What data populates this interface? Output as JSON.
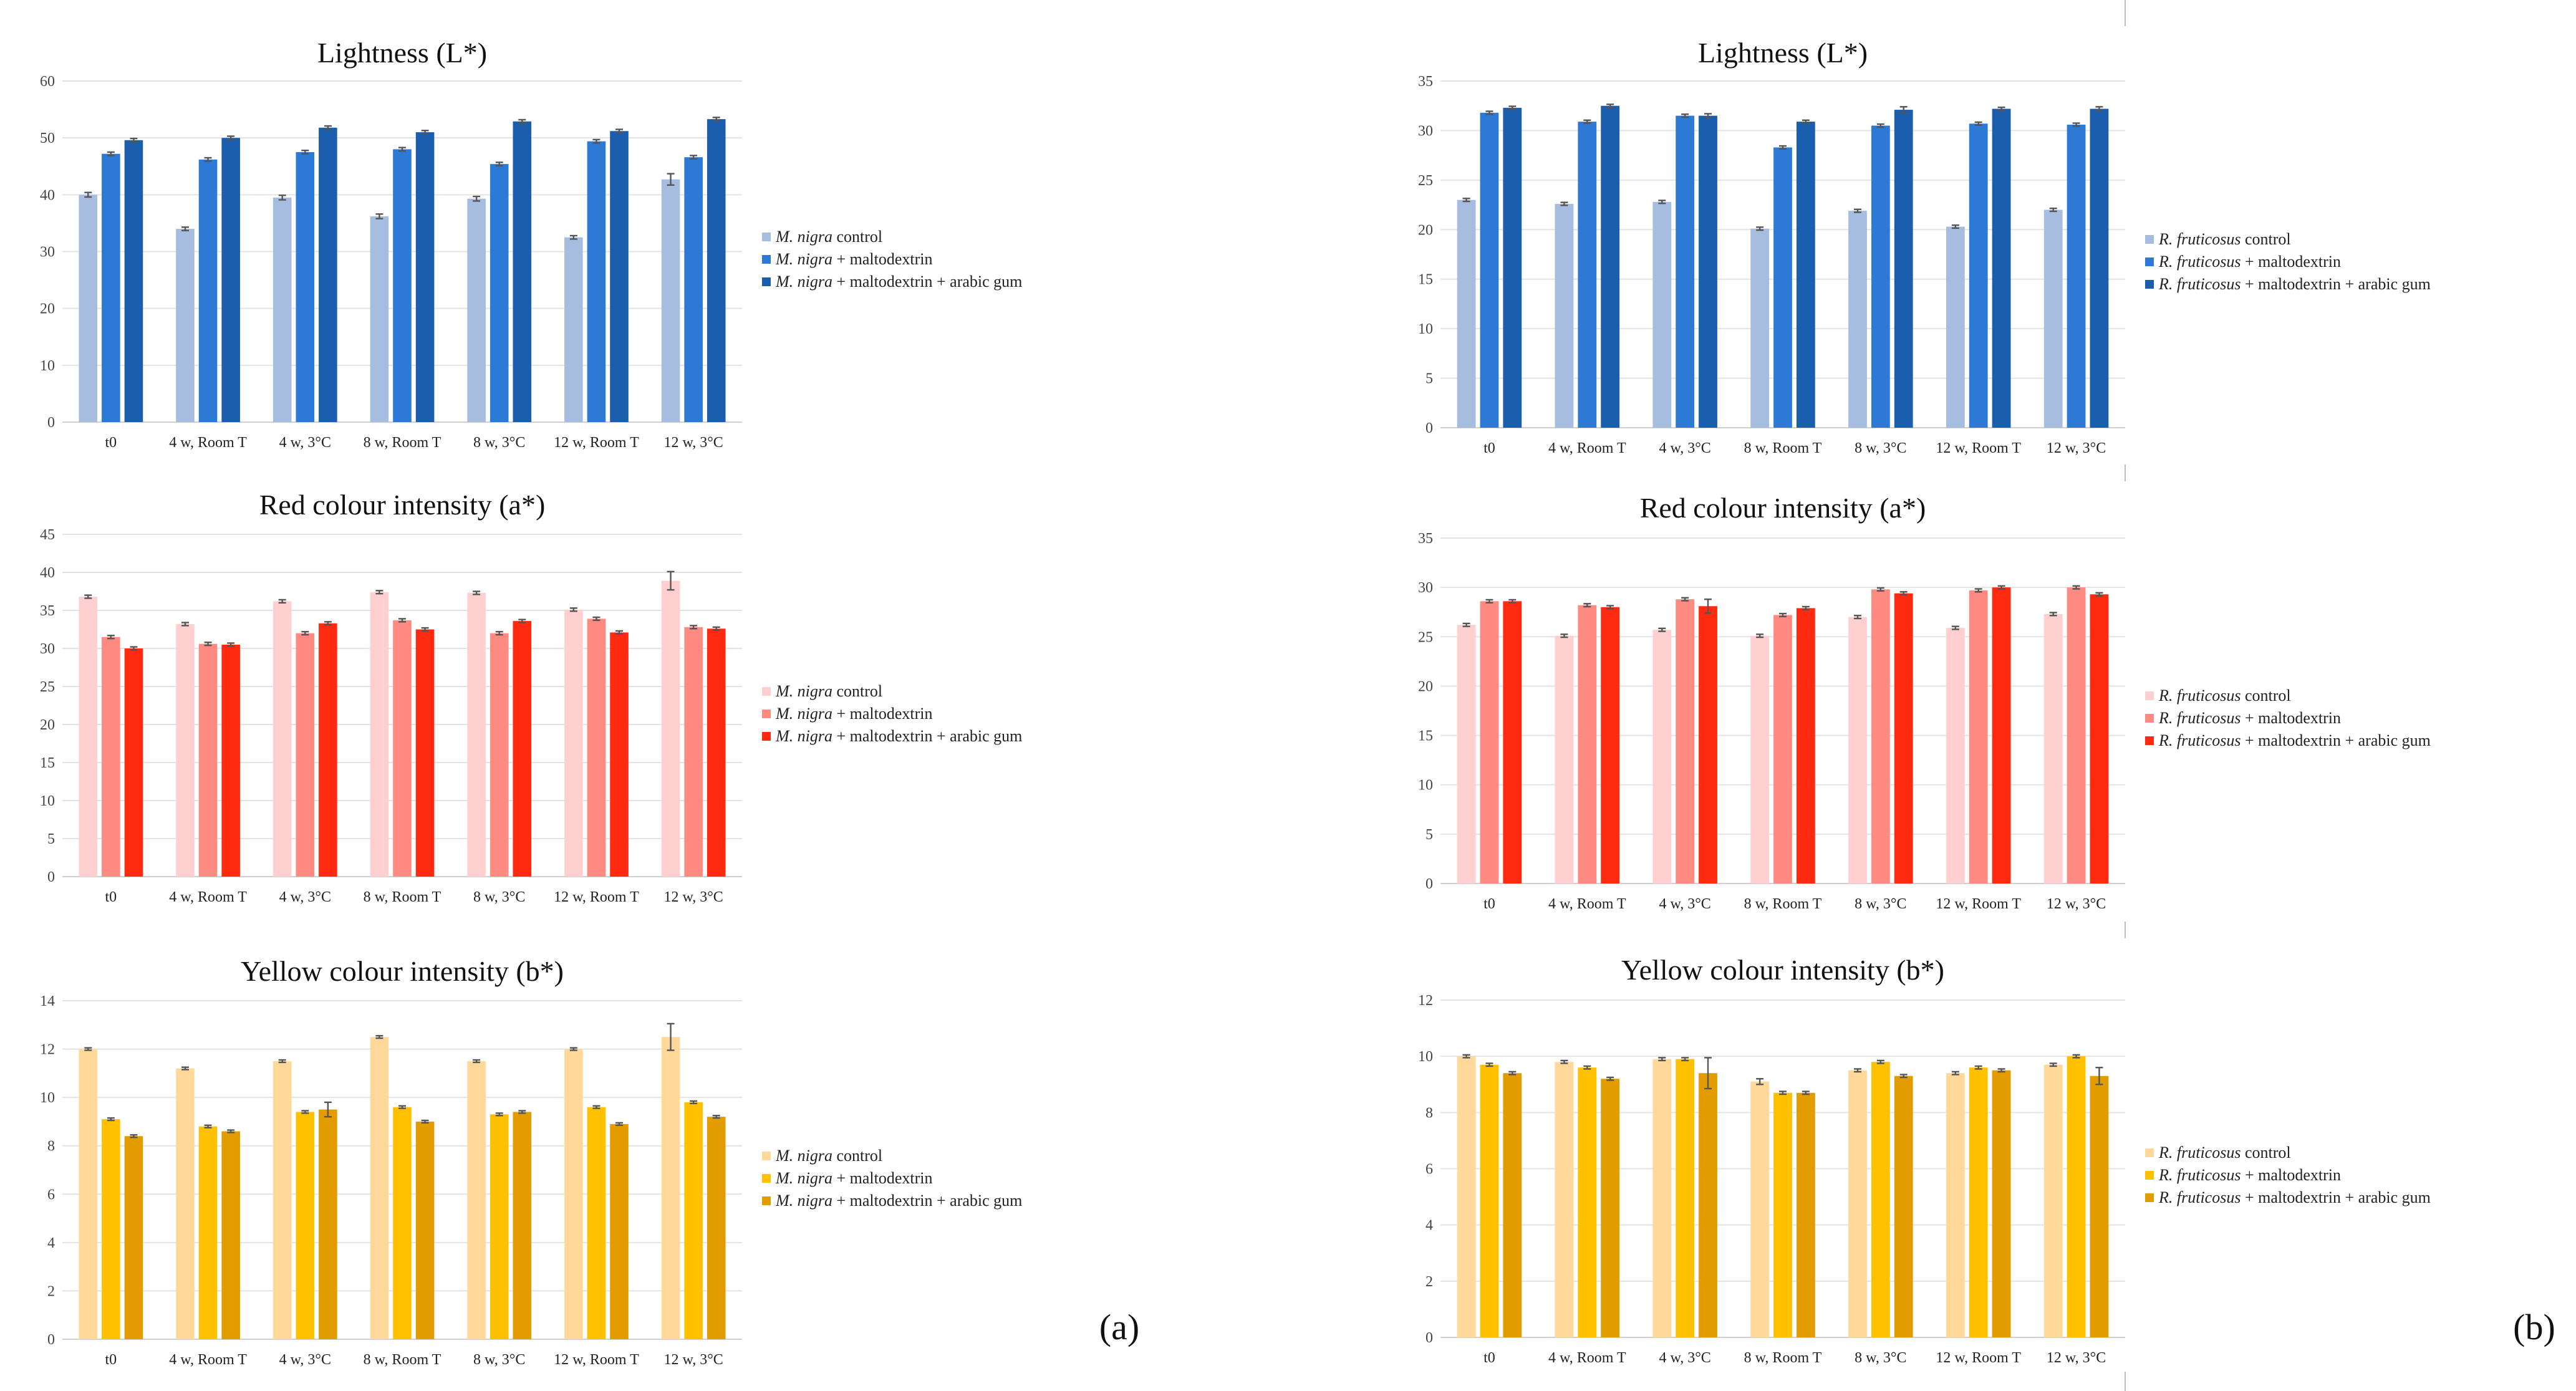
{
  "panel_labels": [
    "(a)",
    "(b)"
  ],
  "legend_labels": {
    "a": [
      {
        "italic": "M. nigra",
        "rest": " control"
      },
      {
        "italic": "M. nigra",
        "rest": " + maltodextrin"
      },
      {
        "italic": "M. nigra",
        "rest": " + maltodextrin + arabic gum"
      }
    ],
    "b": [
      {
        "italic": "R. fruticosus",
        "rest": " control"
      },
      {
        "italic": "R. fruticosus",
        "rest": " + maltodextrin"
      },
      {
        "italic": "R. fruticosus",
        "rest": " + maltodextrin + arabic gum"
      }
    ]
  },
  "colors": {
    "lightness": [
      "#a7bde0",
      "#2c7ad6",
      "#1b5eae"
    ],
    "red": [
      "#ffd0cf",
      "#ff8a82",
      "#ff2a10"
    ],
    "yellow": [
      "#ffd89a",
      "#ffc000",
      "#e29c00"
    ]
  },
  "chart_data": [
    {
      "id": "a-lightness",
      "panel": "a",
      "type": "bar",
      "palette": "lightness",
      "title": "Lightness (L*)",
      "categories": [
        "t0",
        "4 w, Room T",
        "4 w, 3°C",
        "8 w, Room T",
        "8 w, 3°C",
        "12 w, Room T",
        "12 w, 3°C"
      ],
      "ylim": [
        0,
        60
      ],
      "yticks": [
        0,
        10,
        20,
        30,
        40,
        50,
        60
      ],
      "grid": true,
      "legend": "right",
      "series": [
        {
          "name": "M. nigra control",
          "values": [
            40,
            34,
            39.5,
            36.2,
            39.3,
            32.5,
            42.7
          ],
          "errors": [
            0.4,
            0.3,
            0.4,
            0.4,
            0.4,
            0.3,
            1.0
          ]
        },
        {
          "name": "M. nigra + maltodextrin",
          "values": [
            47.2,
            46.2,
            47.5,
            48,
            45.4,
            49.4,
            46.6
          ],
          "errors": [
            0.3,
            0.3,
            0.3,
            0.3,
            0.3,
            0.3,
            0.3
          ]
        },
        {
          "name": "M. nigra + maltodextrin + arabic gum",
          "values": [
            49.6,
            50,
            51.8,
            51,
            52.9,
            51.2,
            53.3
          ],
          "errors": [
            0.3,
            0.3,
            0.3,
            0.3,
            0.3,
            0.3,
            0.3
          ]
        }
      ]
    },
    {
      "id": "a-red",
      "panel": "a",
      "type": "bar",
      "palette": "red",
      "title": "Red colour intensity (a*)",
      "categories": [
        "t0",
        "4 w, Room T",
        "4 w, 3°C",
        "8 w, Room T",
        "8 w, 3°C",
        "12 w, Room T",
        "12 w, 3°C"
      ],
      "ylim": [
        0,
        45
      ],
      "yticks": [
        0,
        5,
        10,
        15,
        20,
        25,
        30,
        35,
        40,
        45
      ],
      "grid": true,
      "legend": "right",
      "series": [
        {
          "name": "M. nigra control",
          "values": [
            36.8,
            33.2,
            36.2,
            37.4,
            37.3,
            35.1,
            38.9
          ],
          "errors": [
            0.2,
            0.2,
            0.2,
            0.2,
            0.2,
            0.2,
            1.2
          ]
        },
        {
          "name": "M. nigra + maltodextrin",
          "values": [
            31.5,
            30.6,
            32,
            33.7,
            32,
            33.9,
            32.8
          ],
          "errors": [
            0.2,
            0.2,
            0.2,
            0.2,
            0.2,
            0.2,
            0.2
          ]
        },
        {
          "name": "M. nigra + maltodextrin + arabic gum",
          "values": [
            30,
            30.5,
            33.3,
            32.5,
            33.6,
            32.1,
            32.6
          ],
          "errors": [
            0.2,
            0.2,
            0.2,
            0.2,
            0.2,
            0.2,
            0.2
          ]
        }
      ]
    },
    {
      "id": "a-yellow",
      "panel": "a",
      "type": "bar",
      "palette": "yellow",
      "title": "Yellow colour intensity (b*)",
      "categories": [
        "t0",
        "4 w, Room T",
        "4 w, 3°C",
        "8 w, Room T",
        "8 w, 3°C",
        "12 w, Room T",
        "12 w, 3°C"
      ],
      "ylim": [
        0,
        14
      ],
      "yticks": [
        0,
        2,
        4,
        6,
        8,
        10,
        12,
        14
      ],
      "grid": true,
      "legend": "right",
      "series": [
        {
          "name": "M. nigra control",
          "values": [
            12,
            11.2,
            11.5,
            12.5,
            11.5,
            12,
            12.5
          ],
          "errors": [
            0.05,
            0.05,
            0.05,
            0.05,
            0.05,
            0.05,
            0.55
          ]
        },
        {
          "name": "M. nigra + maltodextrin",
          "values": [
            9.1,
            8.8,
            9.4,
            9.6,
            9.3,
            9.6,
            9.8
          ],
          "errors": [
            0.05,
            0.05,
            0.05,
            0.05,
            0.05,
            0.05,
            0.05
          ]
        },
        {
          "name": "M. nigra + maltodextrin + arabic gum",
          "values": [
            8.4,
            8.6,
            9.5,
            9,
            9.4,
            8.9,
            9.2
          ],
          "errors": [
            0.05,
            0.05,
            0.3,
            0.05,
            0.05,
            0.05,
            0.05
          ]
        }
      ]
    },
    {
      "id": "b-lightness",
      "panel": "b",
      "type": "bar",
      "palette": "lightness",
      "title": "Lightness (L*)",
      "categories": [
        "t0",
        "4 w, Room T",
        "4 w, 3°C",
        "8 w, Room T",
        "8 w, 3°C",
        "12 w, Room T",
        "12 w, 3°C"
      ],
      "ylim": [
        0,
        35
      ],
      "yticks": [
        0,
        5,
        10,
        15,
        20,
        25,
        30,
        35
      ],
      "grid": true,
      "legend": "right",
      "series": [
        {
          "name": "R. fruticosus control",
          "values": [
            23,
            22.6,
            22.8,
            20.1,
            21.9,
            20.3,
            22
          ],
          "errors": [
            0.15,
            0.15,
            0.15,
            0.15,
            0.15,
            0.15,
            0.15
          ]
        },
        {
          "name": "R. fruticosus + maltodextrin",
          "values": [
            31.8,
            30.9,
            31.5,
            28.3,
            30.5,
            30.7,
            30.6
          ],
          "errors": [
            0.15,
            0.15,
            0.15,
            0.15,
            0.15,
            0.15,
            0.15
          ]
        },
        {
          "name": "R. fruticosus + maltodextrin + arabic gum",
          "values": [
            32.3,
            32.5,
            31.5,
            30.9,
            32.1,
            32.2,
            32.2
          ],
          "errors": [
            0.15,
            0.15,
            0.2,
            0.15,
            0.3,
            0.15,
            0.2
          ]
        }
      ]
    },
    {
      "id": "b-red",
      "panel": "b",
      "type": "bar",
      "palette": "red",
      "title": "Red colour intensity (a*)",
      "categories": [
        "t0",
        "4 w, Room T",
        "4 w, 3°C",
        "8 w, Room T",
        "8 w, 3°C",
        "12 w, Room T",
        "12 w, 3°C"
      ],
      "ylim": [
        0,
        35
      ],
      "yticks": [
        0,
        5,
        10,
        15,
        20,
        25,
        30,
        35
      ],
      "grid": true,
      "legend": "right",
      "series": [
        {
          "name": "R. fruticosus control",
          "values": [
            26.2,
            25.1,
            25.7,
            25.1,
            27,
            25.9,
            27.3
          ],
          "errors": [
            0.15,
            0.15,
            0.15,
            0.15,
            0.15,
            0.15,
            0.15
          ]
        },
        {
          "name": "R. fruticosus + maltodextrin",
          "values": [
            28.6,
            28.2,
            28.8,
            27.2,
            29.8,
            29.7,
            30
          ],
          "errors": [
            0.15,
            0.15,
            0.15,
            0.15,
            0.15,
            0.15,
            0.15
          ]
        },
        {
          "name": "R. fruticosus + maltodextrin + arabic gum",
          "values": [
            28.6,
            28,
            28.1,
            27.9,
            29.4,
            30,
            29.3
          ],
          "errors": [
            0.15,
            0.15,
            0.7,
            0.15,
            0.15,
            0.15,
            0.15
          ]
        }
      ]
    },
    {
      "id": "b-yellow",
      "panel": "b",
      "type": "bar",
      "palette": "yellow",
      "title": "Yellow colour intensity (b*)",
      "categories": [
        "t0",
        "4 w, Room T",
        "4 w, 3°C",
        "8 w, Room T",
        "8 w, 3°C",
        "12 w, Room T",
        "12 w, 3°C"
      ],
      "ylim": [
        0,
        12
      ],
      "yticks": [
        0,
        2,
        4,
        6,
        8,
        10,
        12
      ],
      "grid": true,
      "legend": "right",
      "series": [
        {
          "name": "R. fruticosus control",
          "values": [
            10,
            9.8,
            9.9,
            9.1,
            9.5,
            9.4,
            9.7
          ],
          "errors": [
            0.05,
            0.05,
            0.05,
            0.1,
            0.05,
            0.05,
            0.05
          ]
        },
        {
          "name": "R. fruticosus + maltodextrin",
          "values": [
            9.7,
            9.6,
            9.9,
            8.7,
            9.8,
            9.6,
            10
          ],
          "errors": [
            0.05,
            0.05,
            0.05,
            0.05,
            0.05,
            0.05,
            0.05
          ]
        },
        {
          "name": "R. fruticosus + maltodextrin + arabic gum",
          "values": [
            9.4,
            9.2,
            9.4,
            8.7,
            9.3,
            9.5,
            9.3
          ],
          "errors": [
            0.05,
            0.05,
            0.55,
            0.05,
            0.05,
            0.05,
            0.3
          ]
        }
      ]
    }
  ]
}
